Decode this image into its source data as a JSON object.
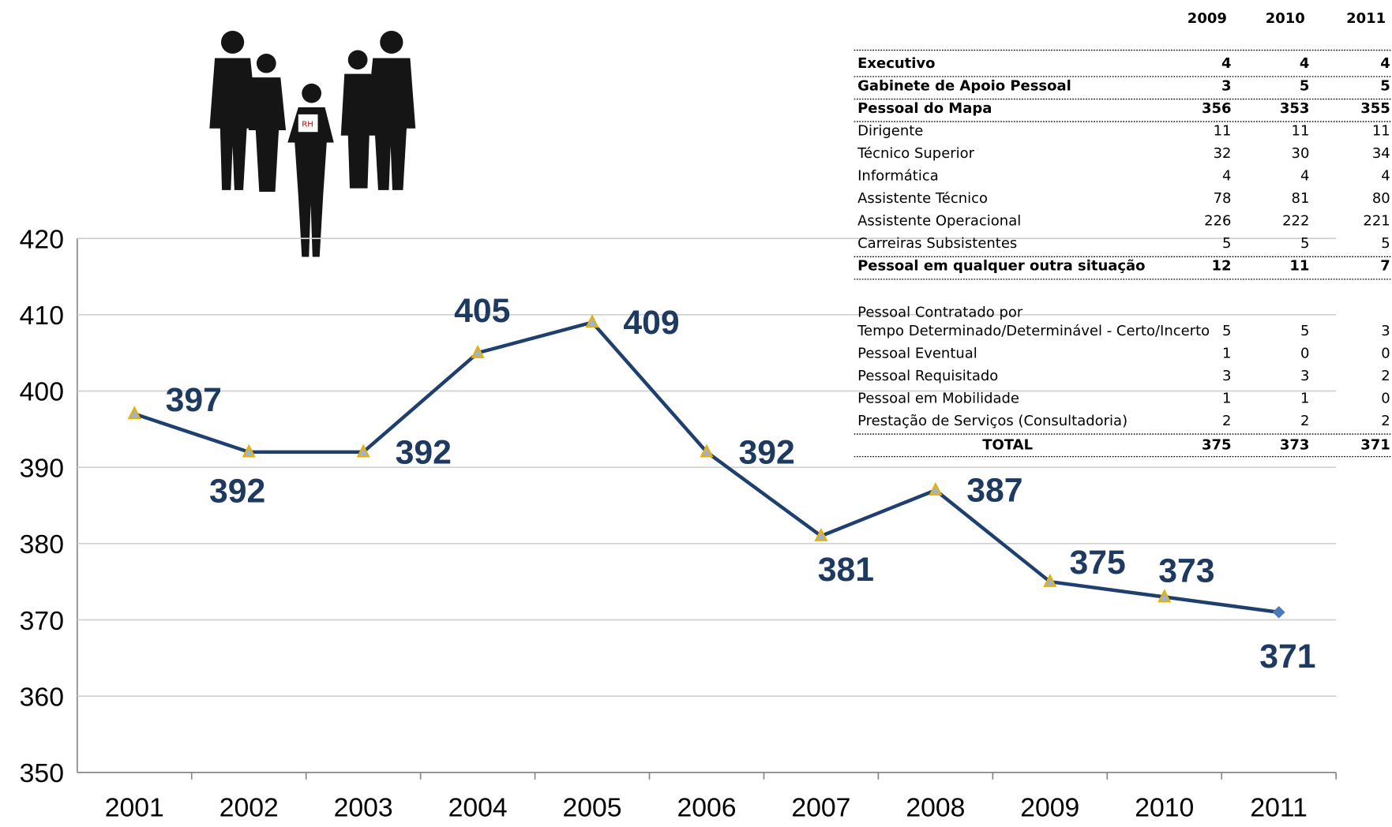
{
  "chart_data": {
    "type": "line",
    "categories": [
      "2001",
      "2002",
      "2003",
      "2004",
      "2005",
      "2006",
      "2007",
      "2008",
      "2009",
      "2010",
      "2011"
    ],
    "values": [
      397,
      392,
      392,
      405,
      409,
      392,
      381,
      387,
      375,
      373,
      371
    ],
    "color": "#1f3f6e",
    "ylim": [
      350,
      420
    ],
    "yticks": [
      350,
      360,
      370,
      380,
      390,
      400,
      410,
      420
    ],
    "grid": true
  },
  "table": {
    "columns": [
      "2009",
      "2010",
      "2011"
    ],
    "rows": [
      {
        "label": "Executivo",
        "values": [
          4,
          4,
          4
        ],
        "bold": true
      },
      {
        "label": "Gabinete de Apoio Pessoal",
        "values": [
          3,
          5,
          5
        ],
        "bold": true
      },
      {
        "label": "Pessoal do Mapa",
        "values": [
          356,
          353,
          355
        ],
        "bold": true
      },
      {
        "label": "Dirigente",
        "values": [
          11,
          11,
          11
        ]
      },
      {
        "label": "Técnico Superior",
        "values": [
          32,
          30,
          34
        ]
      },
      {
        "label": "Informática",
        "values": [
          4,
          4,
          4
        ]
      },
      {
        "label": "Assistente Técnico",
        "values": [
          78,
          81,
          80
        ]
      },
      {
        "label": "Assistente Operacional",
        "values": [
          226,
          222,
          221
        ]
      },
      {
        "label": "Carreiras Subsistentes",
        "values": [
          5,
          5,
          5
        ]
      },
      {
        "label": "Pessoal em qualquer outra situação",
        "values": [
          12,
          11,
          7
        ],
        "bold": true
      },
      {
        "label": "Pessoal Contratado por Tempo Determinado/Determinável - Certo/Incerto",
        "values": [
          5,
          5,
          3
        ]
      },
      {
        "label": "Pessoal Eventual",
        "values": [
          1,
          0,
          0
        ]
      },
      {
        "label": "Pessoal Requisitado",
        "values": [
          3,
          3,
          2
        ]
      },
      {
        "label": "Pessoal em Mobilidade",
        "values": [
          1,
          1,
          0
        ]
      },
      {
        "label": "Prestação de Serviços (Consultadoria)",
        "values": [
          2,
          2,
          2
        ]
      },
      {
        "label": "TOTAL",
        "values": [
          375,
          373,
          371
        ],
        "bold": true
      }
    ]
  }
}
